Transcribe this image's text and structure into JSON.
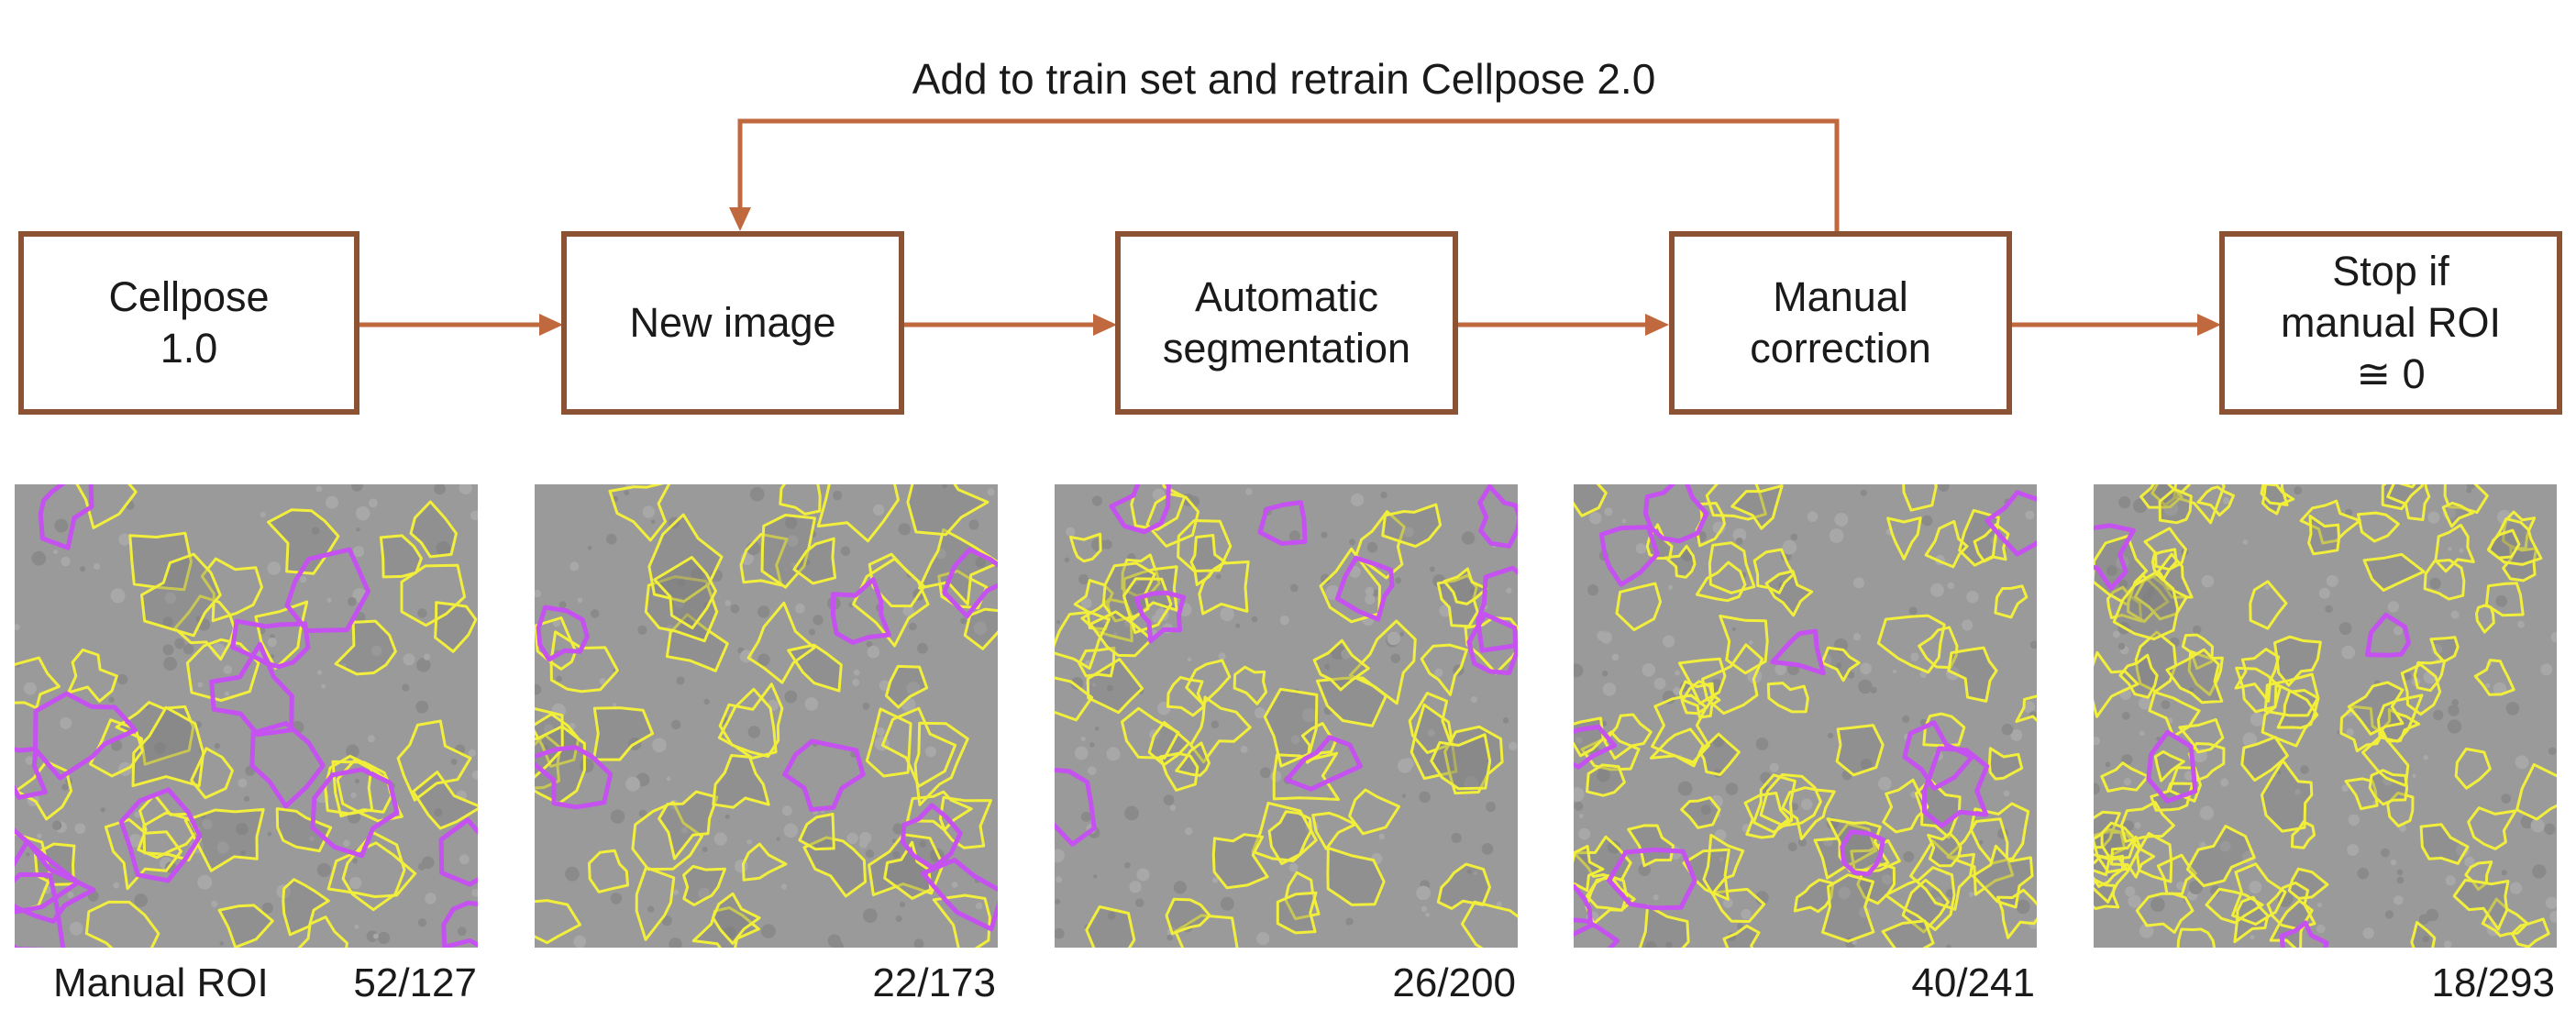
{
  "loop_label": "Add to train set and retrain Cellpose 2.0",
  "steps": [
    {
      "label": "Cellpose\n1.0"
    },
    {
      "label": "New image"
    },
    {
      "label": "Automatic\nsegmentation"
    },
    {
      "label": "Manual\ncorrection"
    },
    {
      "label": "Stop if\nmanual ROI\n≅ 0"
    }
  ],
  "panels": [
    {
      "count": "52/127"
    },
    {
      "count": "22/173"
    },
    {
      "count": "26/200"
    },
    {
      "count": "40/241"
    },
    {
      "count": "18/293"
    }
  ],
  "row_label": "Manual ROI",
  "colors": {
    "box_border": "#8b5233",
    "arrow": "#c0693f",
    "image_background": "#9a9a9a",
    "auto_outline": "#f2ee3c",
    "manual_outline": "#c451f0"
  }
}
